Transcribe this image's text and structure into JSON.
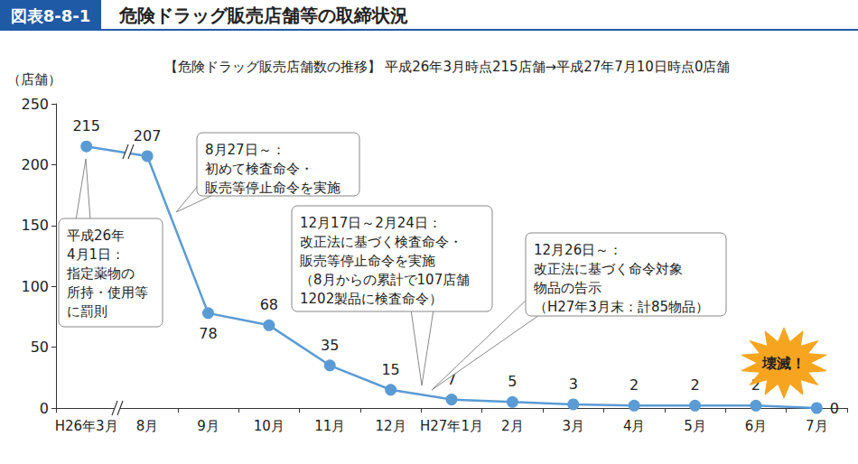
{
  "header": {
    "label": "図表8-8-1",
    "title": "危険ドラッグ販売店舗等の取締状況"
  },
  "chart_data": {
    "type": "line",
    "subtitle": "【危険ドラッグ販売店舗数の推移】 平成26年3月時点215店舗→平成27年7月10日時点0店舗",
    "y_label": "（店舗）",
    "categories": [
      "H26年3月",
      "8月",
      "9月",
      "10月",
      "11月",
      "12月",
      "H27年1月",
      "2月",
      "3月",
      "4月",
      "5月",
      "6月",
      "7月"
    ],
    "values": [
      215,
      207,
      78,
      68,
      35,
      15,
      7,
      5,
      3,
      2,
      2,
      2,
      0
    ],
    "color": "#5b9bd5",
    "marker": "circle",
    "ylim": [
      0,
      250
    ],
    "yticks": [
      0,
      50,
      100,
      150,
      200,
      250
    ],
    "grid": false,
    "data_labels": true,
    "annotations": [
      {
        "text": [
          "平成26年",
          "4月1日：",
          "指定薬物の",
          "所持・使用等",
          "に罰則"
        ]
      },
      {
        "text": [
          "8月27日～：",
          "初めて検査命令・",
          "販売等停止命令を実施"
        ]
      },
      {
        "text": [
          "12月17日～2月24日：",
          "改正法に基づく検査命令・",
          "販売等停止命令を実施",
          "（8月からの累計で107店舗",
          "1202製品に検査命令）"
        ]
      },
      {
        "text": [
          "12月26日～：",
          "改正法に基づく命令対象",
          "物品の告示",
          "（H27年3月末：計85物品）"
        ]
      },
      {
        "text": [
          "壊滅！"
        ]
      }
    ]
  }
}
